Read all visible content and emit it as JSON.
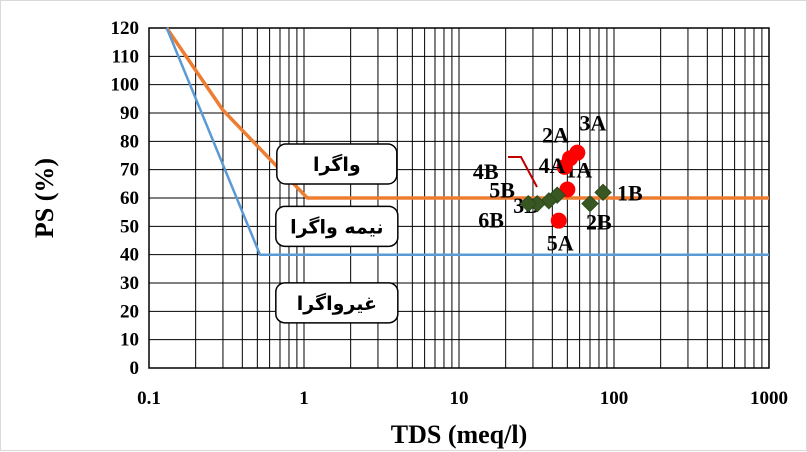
{
  "chart_data": {
    "type": "scatter",
    "xlabel": "TDS (meq/l)",
    "ylabel": "PS (%)",
    "xscale": "log",
    "xlim": [
      0.1,
      1000
    ],
    "ylim": [
      0,
      120
    ],
    "x_ticks": [
      "0.1",
      "1",
      "10",
      "100",
      "1000"
    ],
    "y_ticks": [
      "0",
      "10",
      "20",
      "30",
      "40",
      "50",
      "60",
      "70",
      "80",
      "90",
      "100",
      "110",
      "120"
    ],
    "grid": true,
    "colors": {
      "upper_boundary": "#ED7D31",
      "lower_boundary": "#5B9BD5",
      "group_A": "#FF0000",
      "group_B": "#385723",
      "leader": "#C00000"
    },
    "boundaries": [
      {
        "id": "upper",
        "x": [
          0.13,
          0.3,
          1.05,
          1000
        ],
        "y": [
          120,
          91,
          60,
          60
        ]
      },
      {
        "id": "lower",
        "x": [
          0.13,
          0.52,
          1000
        ],
        "y": [
          120,
          40,
          40
        ]
      }
    ],
    "zones": [
      {
        "label": "واگرا",
        "x": 0.62,
        "y": 72
      },
      {
        "label": "نیمه واگرا",
        "x": 0.62,
        "y": 50
      },
      {
        "label": "غیرواگرا",
        "x": 0.62,
        "y": 23
      }
    ],
    "series": [
      {
        "group": "A",
        "marker": "circle",
        "points": [
          {
            "label": "1A",
            "x": 50,
            "y": 63
          },
          {
            "label": "2A",
            "x": 52,
            "y": 74
          },
          {
            "label": "3A",
            "x": 58,
            "y": 76
          },
          {
            "label": "4A",
            "x": 48,
            "y": 71
          },
          {
            "label": "5A",
            "x": 44,
            "y": 52
          }
        ]
      },
      {
        "group": "B",
        "marker": "diamond",
        "points": [
          {
            "label": "1B",
            "x": 85,
            "y": 62
          },
          {
            "label": "2B",
            "x": 70,
            "y": 58
          },
          {
            "label": "3B",
            "x": 43,
            "y": 61
          },
          {
            "label": "4B",
            "x": 38,
            "y": 59
          },
          {
            "label": "5B",
            "x": 32,
            "y": 58
          },
          {
            "label": "6B",
            "x": 28,
            "y": 58
          }
        ]
      }
    ]
  }
}
